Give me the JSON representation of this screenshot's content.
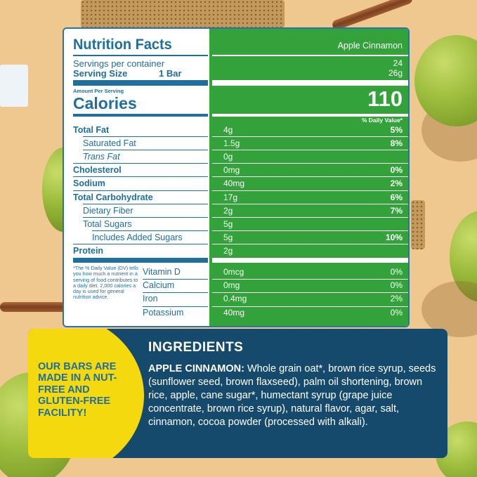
{
  "panel": {
    "title": "Nutrition Facts",
    "flavor": "Apple Cinnamon",
    "servings_label": "Servings per container",
    "servings_value": "24",
    "serving_size_label": "Serving Size",
    "serving_size_amount": "1 Bar",
    "serving_size_grams": "26g",
    "amount_per_serving": "Amount Per Serving",
    "calories_label": "Calories",
    "calories_value": "110",
    "dv_header": "% Daily Value*",
    "nutrients": [
      {
        "label": "Total Fat",
        "amount": "4g",
        "dv": "5%"
      },
      {
        "label": "Saturated Fat",
        "amount": "1.5g",
        "dv": "8%"
      },
      {
        "label": "Trans Fat",
        "amount": "0g",
        "dv": ""
      },
      {
        "label": "Cholesterol",
        "amount": "0mg",
        "dv": "0%"
      },
      {
        "label": "Sodium",
        "amount": "40mg",
        "dv": "2%"
      },
      {
        "label": "Total Carbohydrate",
        "amount": "17g",
        "dv": "6%"
      },
      {
        "label": "Dietary Fiber",
        "amount": "2g",
        "dv": "7%"
      },
      {
        "label": "Total Sugars",
        "amount": "5g",
        "dv": ""
      },
      {
        "label": "Includes Added Sugars",
        "amount": "5g",
        "dv": "10%"
      },
      {
        "label": "Protein",
        "amount": "2g",
        "dv": ""
      }
    ],
    "vitamins": [
      {
        "label": "Vitamin D",
        "amount": "0mcg",
        "dv": "0%"
      },
      {
        "label": "Calcium",
        "amount": "0mg",
        "dv": "0%"
      },
      {
        "label": "Iron",
        "amount": "0.4mg",
        "dv": "2%"
      },
      {
        "label": "Potassium",
        "amount": "40mg",
        "dv": "0%"
      }
    ],
    "footnote": "*The % Daily Value (DV) tells you how much a nutrient in a serving of food contributes to a daily diet. 2,000 calories a day is used for general nutrition advice."
  },
  "ingredients": {
    "heading": "INGREDIENTS",
    "flavor_label": "APPLE CINNAMON:",
    "text": "Whole grain oat*, brown rice syrup, seeds (sunflower seed, brown flaxseed), palm oil shortening, brown rice, apple, cane sugar*, humectant syrup (grape juice concentrate, brown rice syrup), natural flavor, agar, salt, cinnamon, cocoa powder (processed with alkali).",
    "facility_note": "OUR BARS ARE MADE IN A NUT-FREE AND GLUTEN-FREE FACILITY!"
  },
  "colors": {
    "background": "#efc890",
    "panel_green": "#33a23b",
    "label_blue": "#1f6e9c",
    "ingredients_navy": "#154a6c",
    "badge_yellow": "#f5d90f"
  }
}
